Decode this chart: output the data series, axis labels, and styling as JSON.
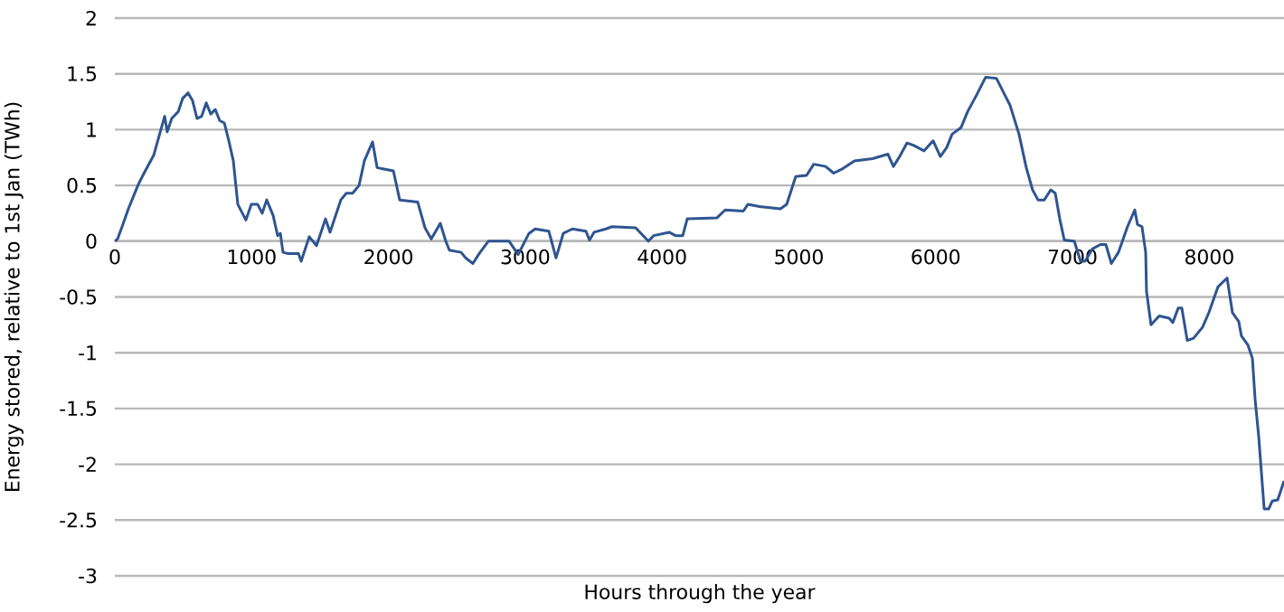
{
  "chart_data": {
    "type": "line",
    "xlabel": "Hours through the year",
    "ylabel": "Energy stored, relative to 1st Jan (TWh)",
    "x": [
      0,
      20,
      53,
      99,
      172,
      218,
      284,
      364,
      383,
      416,
      463,
      496,
      535,
      568,
      601,
      635,
      668,
      701,
      734,
      767,
      800,
      833,
      866,
      899,
      958,
      998,
      1044,
      1077,
      1110,
      1157,
      1190,
      1210,
      1229,
      1262,
      1342,
      1362,
      1421,
      1474,
      1540,
      1573,
      1652,
      1692,
      1738,
      1785,
      1824,
      1884,
      1917,
      1950,
      2036,
      2082,
      2214,
      2267,
      2313,
      2379,
      2419,
      2445,
      2531,
      2564,
      2617,
      2664,
      2730,
      2882,
      2948,
      3027,
      3073,
      3172,
      3225,
      3278,
      3344,
      3443,
      3470,
      3503,
      3589,
      3635,
      3807,
      3900,
      3939,
      4052,
      4098,
      4151,
      4184,
      4402,
      4461,
      4594,
      4627,
      4713,
      4865,
      4911,
      4977,
      5056,
      5109,
      5195,
      5254,
      5321,
      5406,
      5539,
      5651,
      5691,
      5737,
      5790,
      5836,
      5915,
      5981,
      6034,
      6081,
      6120,
      6186,
      6233,
      6299,
      6365,
      6444,
      6497,
      6543,
      6609,
      6662,
      6708,
      6748,
      6794,
      6841,
      6874,
      6907,
      6940,
      7013,
      7059,
      7092,
      7145,
      7204,
      7244,
      7284,
      7336,
      7402,
      7455,
      7475,
      7508,
      7535,
      7541,
      7574,
      7634,
      7707,
      7733,
      7773,
      7799,
      7839,
      7885,
      7951,
      7997,
      8063,
      8130,
      8169,
      8215,
      8235,
      8282,
      8315,
      8335,
      8361,
      8401,
      8434,
      8460,
      8500,
      8546
    ],
    "series": [
      {
        "color": "#2e5590",
        "values": [
          0,
          0.02,
          0.13,
          0.29,
          0.51,
          0.62,
          0.77,
          1.12,
          0.98,
          1.1,
          1.16,
          1.28,
          1.33,
          1.26,
          1.1,
          1.12,
          1.24,
          1.14,
          1.18,
          1.08,
          1.06,
          0.9,
          0.72,
          0.33,
          0.19,
          0.33,
          0.33,
          0.25,
          0.37,
          0.23,
          0.05,
          0.07,
          -0.1,
          -0.11,
          -0.11,
          -0.18,
          0.04,
          -0.04,
          0.2,
          0.08,
          0.37,
          0.43,
          0.43,
          0.5,
          0.72,
          0.89,
          0.66,
          0.65,
          0.63,
          0.37,
          0.35,
          0.12,
          0.02,
          0.16,
          0,
          -0.08,
          -0.1,
          -0.15,
          -0.2,
          -0.11,
          0,
          0,
          -0.12,
          0.07,
          0.11,
          0.09,
          -0.15,
          0.07,
          0.11,
          0.09,
          0.01,
          0.08,
          0.11,
          0.13,
          0.12,
          0,
          0.05,
          0.08,
          0.05,
          0.05,
          0.2,
          0.21,
          0.28,
          0.27,
          0.33,
          0.31,
          0.29,
          0.33,
          0.58,
          0.59,
          0.69,
          0.67,
          0.61,
          0.65,
          0.72,
          0.74,
          0.78,
          0.67,
          0.76,
          0.88,
          0.86,
          0.81,
          0.9,
          0.76,
          0.84,
          0.96,
          1.02,
          1.16,
          1.31,
          1.47,
          1.46,
          1.33,
          1.22,
          0.96,
          0.66,
          0.46,
          0.37,
          0.37,
          0.46,
          0.43,
          0.2,
          0.01,
          0,
          -0.18,
          -0.18,
          -0.07,
          -0.03,
          -0.03,
          -0.2,
          -0.1,
          0.13,
          0.28,
          0.15,
          0.13,
          -0.1,
          -0.45,
          -0.75,
          -0.67,
          -0.69,
          -0.73,
          -0.6,
          -0.6,
          -0.89,
          -0.87,
          -0.77,
          -0.64,
          -0.41,
          -0.33,
          -0.64,
          -0.72,
          -0.85,
          -0.93,
          -1.05,
          -1.42,
          -1.75,
          -2.4,
          -2.4,
          -2.33,
          -2.32,
          -2.15
        ]
      }
    ],
    "xlim": [
      0,
      8546
    ],
    "xticks": [
      0,
      1000,
      2000,
      3000,
      4000,
      5000,
      6000,
      7000,
      8000
    ],
    "ylim": [
      -3,
      2
    ],
    "yticks": [
      -3,
      -2.5,
      -2,
      -1.5,
      -1,
      -0.5,
      0,
      0.5,
      1,
      1.5,
      2
    ],
    "grid": "y",
    "marker": "none",
    "line_style": "solid"
  }
}
